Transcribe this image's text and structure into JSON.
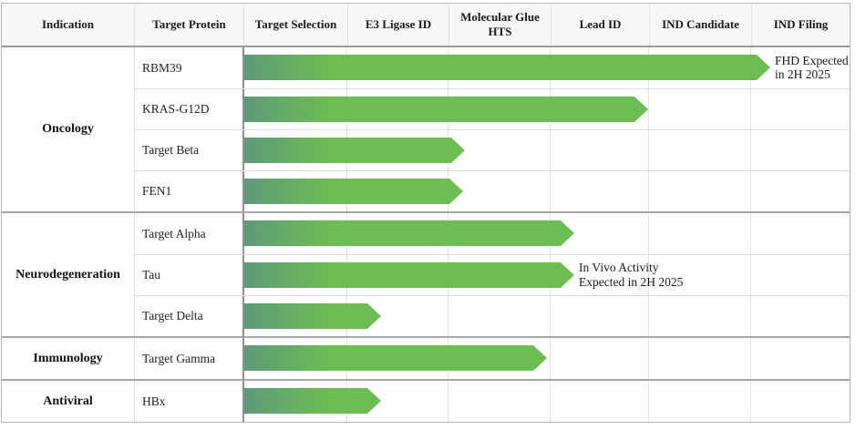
{
  "header": {
    "columns": [
      "Indication",
      "Target Protein",
      "Target Selection",
      "E3 Ligase ID",
      "Molecular Glue HTS",
      "Lead ID",
      "IND Candidate",
      "IND Filing"
    ]
  },
  "pipeline": {
    "groups": [
      {
        "indication": "Oncology",
        "programs": [
          {
            "name": "RBM39",
            "stage_progress": 5.2,
            "annotation": "FHD Expected\nin 2H 2025"
          },
          {
            "name": "KRAS-G12D",
            "stage_progress": 4.0
          },
          {
            "name": "Target Beta",
            "stage_progress": 2.17
          },
          {
            "name": "FEN1",
            "stage_progress": 2.15
          }
        ]
      },
      {
        "indication": "Neurodegeneration",
        "programs": [
          {
            "name": "Target Alpha",
            "stage_progress": 3.25
          },
          {
            "name": "Tau",
            "stage_progress": 3.25,
            "annotation": "In Vivo Activity\nExpected in 2H 2025"
          },
          {
            "name": "Target Delta",
            "stage_progress": 1.34
          }
        ]
      },
      {
        "indication": "Immunology",
        "programs": [
          {
            "name": "Target Gamma",
            "stage_progress": 2.97
          }
        ]
      },
      {
        "indication": "Antiviral",
        "programs": [
          {
            "name": "HBx",
            "stage_progress": 1.34
          }
        ]
      }
    ]
  },
  "chart_data": {
    "type": "bar",
    "orientation": "horizontal",
    "title": "Drug discovery pipeline progression",
    "stages": [
      "Target Selection",
      "E3 Ligase ID",
      "Molecular Glue HTS",
      "Lead ID",
      "IND Candidate",
      "IND Filing"
    ],
    "categories": [
      "RBM39",
      "KRAS-G12D",
      "Target Beta",
      "FEN1",
      "Target Alpha",
      "Tau",
      "Target Delta",
      "Target Gamma",
      "HBx"
    ],
    "category_groups": [
      "Oncology",
      "Oncology",
      "Oncology",
      "Oncology",
      "Neurodegeneration",
      "Neurodegeneration",
      "Neurodegeneration",
      "Immunology",
      "Antiviral"
    ],
    "values": [
      5.2,
      4.0,
      2.17,
      2.15,
      3.25,
      3.25,
      1.34,
      2.97,
      1.34
    ],
    "value_scale": "stages completed (0 = start of Target Selection, 6 = end of IND Filing)",
    "xlim": [
      0,
      6
    ],
    "grid": true,
    "annotations": [
      {
        "category": "RBM39",
        "text": "FHD Expected in 2H 2025"
      },
      {
        "category": "Tau",
        "text": "In Vivo Activity Expected in 2H 2025"
      }
    ],
    "bar_color_gradient": [
      "#5f9a7a",
      "#6cbd52"
    ]
  },
  "colors": {
    "bar_gradient_start": "#5f9a7a",
    "bar_gradient_end": "#6cbd52",
    "header_bg": "#f7f7f5",
    "group_border": "#a6a6a6",
    "row_border": "#dcdcdc",
    "gridline": "#e4e4e4",
    "chart_divider": "#909090"
  }
}
